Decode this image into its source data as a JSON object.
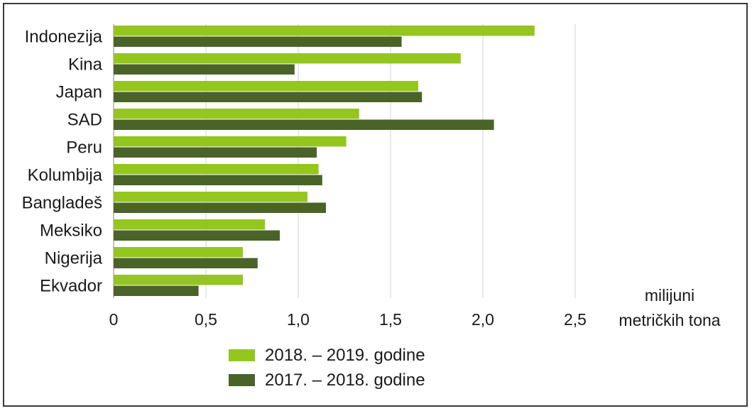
{
  "chart_data": {
    "type": "bar",
    "orientation": "horizontal",
    "categories": [
      "Indonezija",
      "Kina",
      "Japan",
      "SAD",
      "Peru",
      "Kolumbija",
      "Bangladeš",
      "Meksiko",
      "Nigerija",
      "Ekvador"
    ],
    "series": [
      {
        "name": "2018. – 2019. godine",
        "color": "#94c61f",
        "values": [
          2.28,
          1.88,
          1.65,
          1.33,
          1.26,
          1.11,
          1.05,
          0.82,
          0.7,
          0.7
        ]
      },
      {
        "name": "2017. – 2018. godine",
        "color": "#4a6328",
        "values": [
          1.56,
          0.98,
          1.67,
          2.06,
          1.1,
          1.13,
          1.15,
          0.9,
          0.78,
          0.46
        ]
      }
    ],
    "xlim": [
      0,
      2.5
    ],
    "xticks": [
      0,
      0.5,
      1.0,
      1.5,
      2.0,
      2.5
    ],
    "xtick_labels": [
      "0",
      "0,5",
      "1,0",
      "1,5",
      "2,0",
      "2,5"
    ],
    "unit_label": [
      "milijuni",
      "metričkih tona"
    ],
    "grid": "vertical",
    "legend_position": "bottom"
  }
}
